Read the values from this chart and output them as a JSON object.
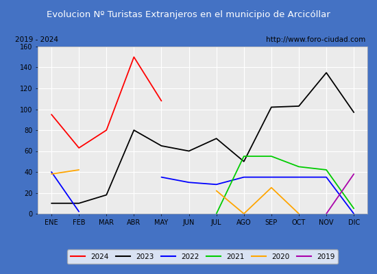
{
  "title": "Evolucion Nº Turistas Extranjeros en el municipio de Arcicóllar",
  "subtitle_left": "2019 - 2024",
  "subtitle_right": "http://www.foro-ciudad.com",
  "months": [
    "ENE",
    "FEB",
    "MAR",
    "ABR",
    "MAY",
    "JUN",
    "JUL",
    "AGO",
    "SEP",
    "OCT",
    "NOV",
    "DIC"
  ],
  "ylim": [
    0,
    160
  ],
  "yticks": [
    0,
    20,
    40,
    60,
    80,
    100,
    120,
    140,
    160
  ],
  "series_2024": [
    95,
    63,
    80,
    150,
    108,
    null,
    null,
    null,
    null,
    null,
    null,
    null
  ],
  "series_2023": [
    10,
    10,
    18,
    80,
    65,
    60,
    72,
    50,
    102,
    103,
    135,
    97
  ],
  "series_2022": [
    40,
    2,
    null,
    null,
    35,
    30,
    28,
    35,
    35,
    35,
    35,
    0
  ],
  "series_2021": [
    null,
    null,
    null,
    null,
    null,
    null,
    0,
    55,
    55,
    45,
    42,
    5
  ],
  "series_2020": [
    38,
    42,
    null,
    null,
    null,
    null,
    22,
    0,
    25,
    0,
    null,
    null
  ],
  "series_2019": [
    null,
    null,
    null,
    null,
    null,
    null,
    null,
    null,
    null,
    null,
    0,
    38
  ],
  "colors": {
    "2024": "#FF0000",
    "2023": "#000000",
    "2022": "#0000FF",
    "2021": "#00CC00",
    "2020": "#FFA500",
    "2019": "#AA00AA"
  },
  "title_bg_color": "#4472C4",
  "title_text_color": "white",
  "plot_bg_color": "#EBEBEB",
  "grid_color": "white",
  "border_color": "#4472C4",
  "outer_bg": "#4472C4"
}
